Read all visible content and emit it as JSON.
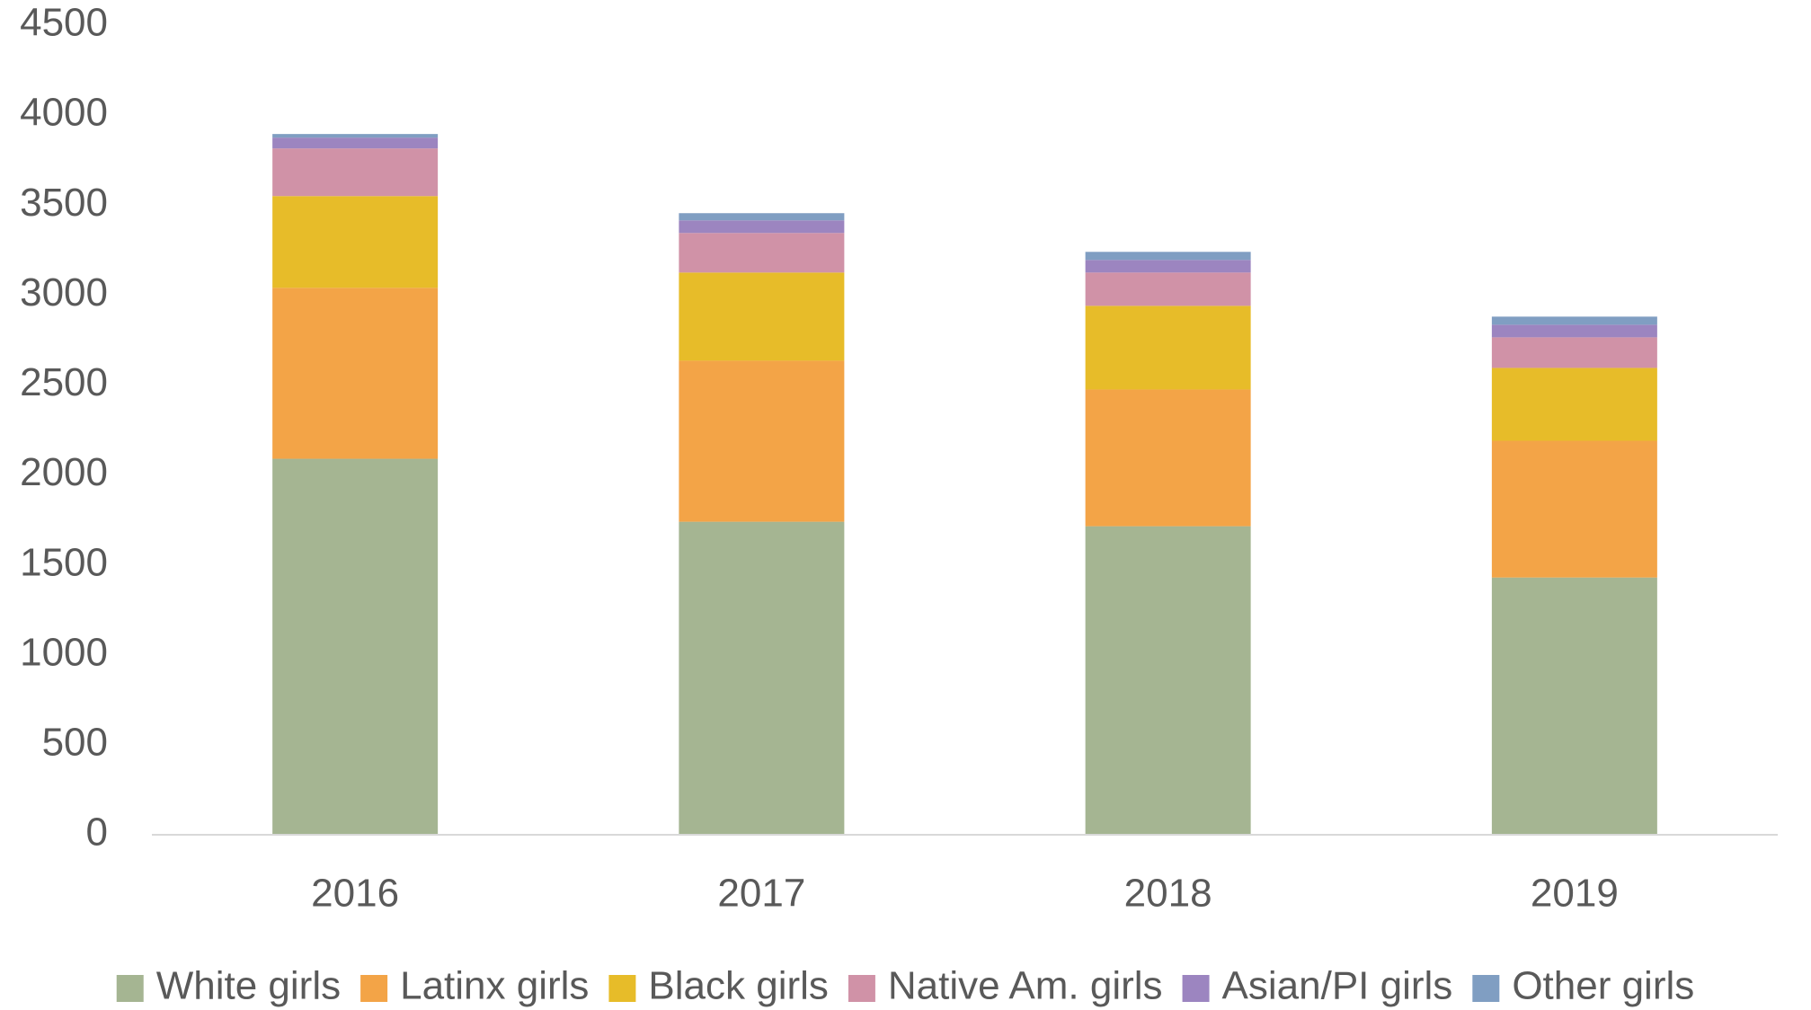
{
  "chart_data": {
    "type": "stacked_bar",
    "categories": [
      "2016",
      "2017",
      "2018",
      "2019"
    ],
    "series": [
      {
        "name": "White girls",
        "color": "#a5b592",
        "values": [
          2090,
          1740,
          1715,
          1430
        ]
      },
      {
        "name": "Latinx girls",
        "color": "#f3a447",
        "values": [
          950,
          895,
          760,
          760
        ]
      },
      {
        "name": "Black girls",
        "color": "#e7bc29",
        "values": [
          510,
          490,
          465,
          405
        ]
      },
      {
        "name": "Native Am. girls",
        "color": "#d092a7",
        "values": [
          265,
          220,
          185,
          170
        ]
      },
      {
        "name": "Asian/PI girls",
        "color": "#9c85c0",
        "values": [
          60,
          70,
          70,
          70
        ]
      },
      {
        "name": "Other girls",
        "color": "#809ec2",
        "values": [
          20,
          40,
          45,
          45
        ]
      }
    ],
    "ylim": [
      0,
      4500
    ],
    "yticks": [
      0,
      500,
      1000,
      1500,
      2000,
      2500,
      3000,
      3500,
      4000,
      4500
    ],
    "grid": false,
    "legend": "bottom"
  }
}
